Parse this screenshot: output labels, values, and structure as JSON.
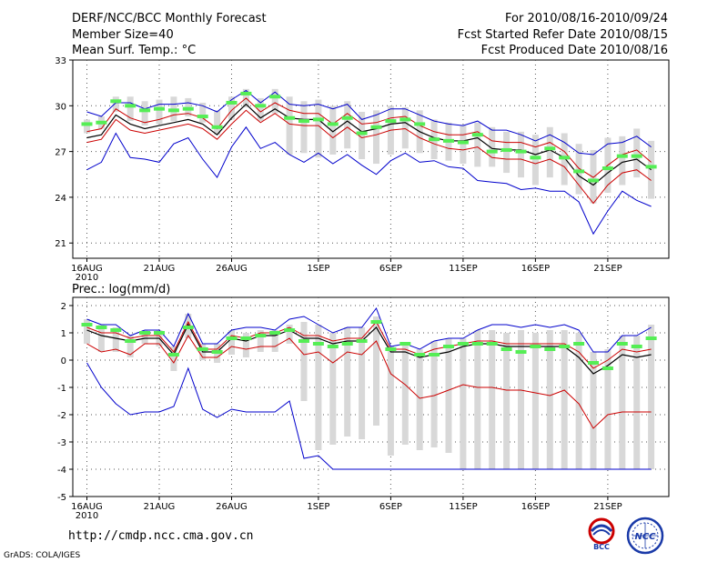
{
  "header": {
    "title": "DERF/NCC/BCC Monthly Forecast",
    "member_size": "Member Size=40",
    "variable": "Mean Surf. Temp.: °C",
    "forecast_period": "For 2010/08/16-2010/09/24",
    "started_date": "Fcst Started Refer Date 2010/08/15",
    "produced_date": "Fcst Produced Date 2010/08/16"
  },
  "footer": {
    "url": "http://cmdp.ncc.cma.gov.cn",
    "grads": "GrADS: COLA/IGES"
  },
  "logos": {
    "bcc_text": "BCC",
    "ncc_text": "NCC"
  },
  "colors": {
    "envelope": "#0000cc",
    "spread": "#cc0000",
    "mean": "#000000",
    "box": "#d8d8d8",
    "marker": "#55ee55"
  },
  "chart_data": [
    {
      "type": "line",
      "title": "Mean Surf. Temp.: °C",
      "x_tick_labels": [
        "16AUG",
        "21AUG",
        "26AUG",
        "1SEP",
        "6SEP",
        "11SEP",
        "16SEP",
        "21SEP"
      ],
      "x_year_label": "2010",
      "x_tick_days": [
        1,
        6,
        11,
        17,
        22,
        27,
        32,
        37
      ],
      "ylim": [
        20,
        33
      ],
      "y_ticks": [
        21,
        24,
        27,
        30,
        33
      ],
      "days": 40,
      "series": [
        {
          "name": "max",
          "values": [
            25.8,
            26.3,
            28.2,
            26.6,
            26.5,
            26.3,
            27.5,
            27.9,
            26.5,
            25.3,
            27.3,
            28.6,
            27.2,
            27.6,
            26.8,
            26.3,
            26.9,
            26.2,
            26.8,
            26.1,
            25.5,
            26.4,
            26.9,
            26.3,
            26.4,
            26.0,
            25.9,
            25.1,
            25.0,
            24.9,
            24.5,
            24.6,
            24.4,
            24.4,
            23.7,
            21.6,
            23.1,
            24.4,
            23.8,
            23.4
          ]
        },
        {
          "name": "min",
          "values": [
            29.6,
            29.3,
            30.2,
            30.2,
            29.8,
            30.1,
            30.1,
            30.2,
            30.0,
            29.6,
            30.4,
            31.0,
            30.2,
            30.9,
            30.1,
            30.0,
            30.1,
            29.8,
            30.1,
            29.1,
            29.4,
            29.8,
            29.8,
            29.4,
            29.0,
            28.8,
            28.7,
            29.0,
            28.4,
            28.4,
            28.1,
            27.7,
            28.1,
            27.6,
            26.9,
            26.8,
            27.5,
            27.6,
            28.0,
            27.3
          ]
        },
        {
          "name": "upper",
          "values": [
            28.3,
            28.5,
            29.8,
            29.2,
            28.9,
            29.1,
            29.4,
            29.5,
            29.2,
            28.5,
            29.7,
            30.5,
            29.6,
            30.2,
            29.7,
            29.5,
            29.5,
            28.8,
            29.5,
            28.8,
            28.9,
            29.2,
            29.3,
            28.7,
            28.3,
            28.1,
            28.1,
            28.3,
            27.7,
            27.6,
            27.6,
            27.3,
            27.6,
            27.0,
            25.9,
            25.3,
            26.1,
            26.8,
            27.1,
            26.3
          ]
        },
        {
          "name": "mean",
          "values": [
            27.9,
            28.1,
            29.4,
            28.8,
            28.5,
            28.7,
            28.9,
            29.1,
            28.8,
            28.1,
            29.2,
            30.1,
            29.2,
            29.8,
            29.2,
            29.1,
            29.1,
            28.3,
            29.0,
            28.3,
            28.5,
            28.8,
            28.9,
            28.3,
            27.9,
            27.7,
            27.7,
            27.9,
            27.2,
            27.1,
            27.1,
            26.8,
            27.1,
            26.6,
            25.4,
            24.8,
            25.6,
            26.3,
            26.5,
            25.8
          ]
        },
        {
          "name": "lower",
          "values": [
            27.6,
            27.8,
            29.1,
            28.4,
            28.2,
            28.4,
            28.6,
            28.8,
            28.5,
            27.8,
            28.8,
            29.7,
            28.9,
            29.5,
            28.8,
            28.7,
            28.7,
            27.9,
            28.6,
            27.9,
            28.1,
            28.4,
            28.5,
            27.9,
            27.5,
            27.2,
            27.1,
            27.3,
            26.6,
            26.5,
            26.5,
            26.2,
            26.5,
            26.0,
            24.8,
            23.6,
            24.8,
            25.6,
            25.8,
            25.1
          ]
        },
        {
          "name": "markers",
          "values": [
            28.8,
            28.9,
            30.3,
            30.0,
            29.7,
            29.8,
            29.7,
            29.8,
            29.3,
            28.6,
            30.2,
            30.8,
            30.0,
            30.6,
            29.2,
            29.0,
            29.1,
            28.8,
            29.2,
            28.2,
            28.6,
            29.0,
            29.1,
            28.8,
            27.8,
            27.7,
            27.6,
            28.1,
            27.0,
            27.1,
            27.0,
            26.6,
            27.2,
            26.6,
            25.7,
            25.1,
            25.9,
            26.7,
            26.7,
            26.0
          ]
        },
        {
          "name": "box_top",
          "values": [
            29.1,
            29.3,
            30.6,
            30.6,
            30.3,
            30.4,
            30.6,
            30.5,
            30.2,
            29.7,
            30.6,
            31.1,
            30.5,
            31.1,
            30.6,
            30.3,
            30.4,
            30.0,
            30.3,
            29.6,
            29.7,
            30.0,
            29.9,
            29.7,
            29.1,
            28.9,
            28.7,
            28.9,
            28.6,
            28.3,
            28.3,
            28.1,
            28.6,
            28.2,
            27.5,
            27.1,
            27.9,
            28.0,
            28.5,
            27.7
          ]
        },
        {
          "name": "box_bottom",
          "values": [
            28.2,
            28.5,
            29.6,
            29.0,
            28.7,
            28.8,
            29.0,
            29.3,
            28.9,
            28.1,
            29.1,
            29.9,
            29.0,
            29.5,
            26.8,
            26.9,
            26.6,
            26.8,
            27.2,
            26.5,
            26.2,
            26.8,
            27.2,
            26.9,
            26.5,
            26.4,
            26.2,
            26.0,
            26.0,
            25.6,
            25.3,
            24.8,
            25.3,
            24.8,
            24.2,
            23.6,
            24.3,
            24.8,
            25.3,
            23.9
          ]
        }
      ]
    },
    {
      "type": "line",
      "title": "Prec.: log(mm/d)",
      "x_tick_labels": [
        "16AUG",
        "21AUG",
        "26AUG",
        "1SEP",
        "6SEP",
        "11SEP",
        "16SEP",
        "21SEP"
      ],
      "x_year_label": "2010",
      "x_tick_days": [
        1,
        6,
        11,
        17,
        22,
        27,
        32,
        37
      ],
      "ylim": [
        -5,
        2.3
      ],
      "y_ticks": [
        -5,
        -4,
        -3,
        -2,
        -1,
        0,
        1,
        2
      ],
      "days": 40,
      "series": [
        {
          "name": "upper_env",
          "values": [
            1.5,
            1.3,
            1.3,
            0.9,
            1.1,
            1.1,
            0.5,
            1.7,
            0.6,
            0.6,
            1.1,
            1.2,
            1.2,
            1.1,
            1.5,
            1.6,
            1.3,
            1.0,
            1.2,
            1.2,
            1.9,
            0.5,
            0.6,
            0.4,
            0.7,
            0.8,
            0.8,
            1.1,
            1.3,
            1.3,
            1.2,
            1.3,
            1.2,
            1.3,
            1.1,
            0.3,
            0.3,
            0.9,
            0.9,
            1.2
          ]
        },
        {
          "name": "lower_env",
          "values": [
            -0.1,
            -1.0,
            -1.6,
            -2.0,
            -1.9,
            -1.9,
            -1.7,
            -0.3,
            -1.8,
            -2.1,
            -1.8,
            -1.9,
            -1.9,
            -1.9,
            -1.5,
            -3.6,
            -3.5,
            -4.0,
            -4.0,
            -4.0,
            -4.0,
            -4.0,
            -4.0,
            -4.0,
            -4.0,
            -4.0,
            -4.0,
            -4.0,
            -4.0,
            -4.0,
            -4.0,
            -4.0,
            -4.0,
            -4.0,
            -4.0,
            -4.0,
            -4.0,
            -4.0,
            -4.0,
            -4.0
          ]
        },
        {
          "name": "mean_upper",
          "values": [
            1.2,
            1.0,
            1.0,
            0.8,
            0.9,
            0.9,
            0.3,
            1.4,
            0.4,
            0.4,
            0.9,
            0.8,
            1.0,
            1.0,
            1.2,
            0.9,
            0.9,
            0.7,
            0.8,
            0.8,
            1.4,
            0.4,
            0.4,
            0.2,
            0.4,
            0.5,
            0.6,
            0.7,
            0.7,
            0.6,
            0.6,
            0.6,
            0.6,
            0.6,
            0.3,
            -0.3,
            0.0,
            0.4,
            0.3,
            0.4
          ]
        },
        {
          "name": "mean",
          "values": [
            1.1,
            0.9,
            0.8,
            0.7,
            0.8,
            0.8,
            0.2,
            1.3,
            0.3,
            0.3,
            0.8,
            0.7,
            0.9,
            0.9,
            1.1,
            0.8,
            0.8,
            0.6,
            0.7,
            0.7,
            1.2,
            0.3,
            0.3,
            0.1,
            0.2,
            0.3,
            0.5,
            0.6,
            0.6,
            0.5,
            0.5,
            0.5,
            0.5,
            0.5,
            0.1,
            -0.5,
            -0.2,
            0.2,
            0.1,
            0.2
          ]
        },
        {
          "name": "mean_lower",
          "values": [
            0.6,
            0.3,
            0.4,
            0.2,
            0.6,
            0.6,
            -0.1,
            0.9,
            0.1,
            0.1,
            0.5,
            0.4,
            0.5,
            0.5,
            0.8,
            0.2,
            0.3,
            -0.1,
            0.3,
            0.2,
            0.7,
            -0.5,
            -0.9,
            -1.4,
            -1.3,
            -1.1,
            -0.9,
            -1.0,
            -1.0,
            -1.1,
            -1.1,
            -1.2,
            -1.3,
            -1.1,
            -1.6,
            -2.5,
            -2.0,
            -1.9,
            -1.9,
            -1.9
          ]
        },
        {
          "name": "markers",
          "values": [
            1.3,
            1.2,
            1.1,
            0.7,
            1.0,
            1.0,
            0.2,
            1.2,
            0.4,
            0.3,
            0.8,
            0.8,
            0.9,
            1.0,
            1.1,
            0.7,
            0.6,
            0.5,
            0.6,
            0.7,
            1.4,
            0.4,
            0.6,
            0.2,
            0.2,
            0.5,
            0.6,
            0.6,
            0.6,
            0.4,
            0.3,
            0.5,
            0.4,
            0.5,
            0.6,
            -0.1,
            -0.3,
            0.6,
            0.5,
            0.8
          ]
        },
        {
          "name": "box_top",
          "values": [
            1.5,
            1.3,
            1.2,
            0.9,
            1.1,
            1.1,
            0.5,
            1.7,
            0.6,
            0.6,
            1.1,
            1.0,
            1.1,
            1.1,
            1.3,
            1.4,
            1.3,
            1.0,
            1.2,
            1.2,
            1.6,
            0.5,
            0.6,
            0.4,
            0.7,
            0.8,
            0.8,
            1.1,
            1.1,
            1.0,
            1.1,
            1.0,
            1.1,
            1.1,
            1.0,
            0.3,
            0.4,
            0.9,
            0.9,
            1.3
          ]
        },
        {
          "name": "box_bottom",
          "values": [
            0.6,
            0.3,
            0.3,
            0.1,
            0.6,
            0.5,
            -0.4,
            0.8,
            0.0,
            -0.1,
            0.2,
            0.1,
            0.3,
            0.3,
            0.6,
            -1.5,
            -3.3,
            -3.1,
            -2.8,
            -2.9,
            -2.4,
            -3.5,
            -3.1,
            -3.3,
            -3.2,
            -3.4,
            -4.0,
            -4.0,
            -4.0,
            -4.0,
            -4.0,
            -4.0,
            -4.0,
            -4.0,
            -4.0,
            -4.0,
            -4.0,
            -4.0,
            -4.0,
            -4.0
          ]
        }
      ]
    }
  ]
}
